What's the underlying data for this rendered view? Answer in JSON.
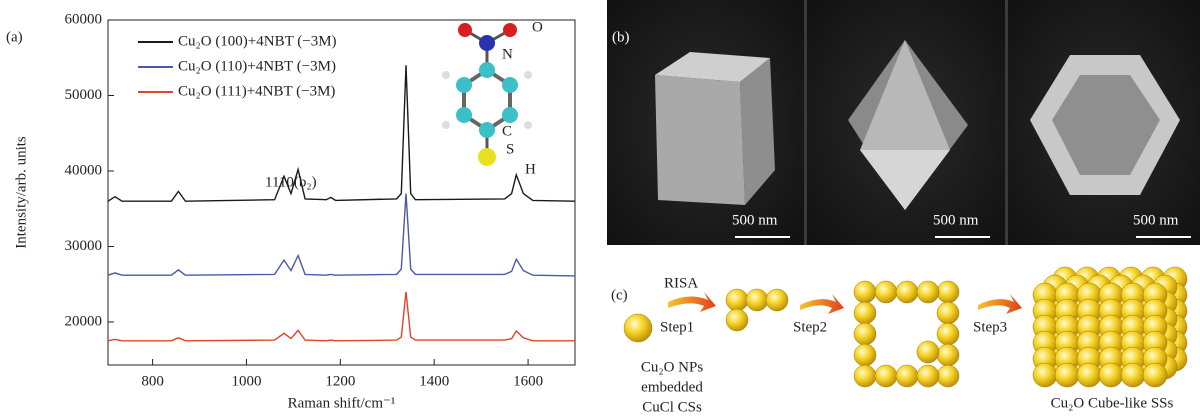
{
  "chart_data": {
    "type": "line",
    "panel": "(a)",
    "xlabel": "Raman shift/cm⁻¹",
    "ylabel": "Intensity/arb. units",
    "xlim": [
      705,
      1700
    ],
    "ylim": [
      14300,
      60000
    ],
    "xticks": [
      800,
      1000,
      1200,
      1400,
      1600
    ],
    "yticks": [
      20000,
      30000,
      40000,
      50000,
      60000
    ],
    "x": [
      705,
      720,
      735,
      840,
      855,
      870,
      1060,
      1080,
      1095,
      1110,
      1125,
      1170,
      1180,
      1190,
      1320,
      1330,
      1340,
      1350,
      1360,
      1550,
      1565,
      1575,
      1590,
      1610,
      1700
    ],
    "series": [
      {
        "name": "Cu₂O (100)+4NBT (−3M)",
        "color": "#1a1a1a",
        "values": [
          36000,
          36600,
          36000,
          36000,
          37300,
          36000,
          36200,
          39300,
          37000,
          40200,
          36300,
          36200,
          36500,
          36100,
          36300,
          37000,
          54000,
          37000,
          36200,
          36300,
          37000,
          39500,
          37000,
          36100,
          36000
        ]
      },
      {
        "name": "Cu₂O (110)+4NBT (−3M)",
        "color": "#4a5aa8",
        "values": [
          26200,
          26500,
          26200,
          26200,
          26900,
          26200,
          26300,
          28200,
          26800,
          28800,
          26300,
          26200,
          26300,
          26200,
          26300,
          27000,
          37000,
          27000,
          26300,
          26300,
          26700,
          28300,
          26800,
          26200,
          26100
        ]
      },
      {
        "name": "Cu₂O (111)+4NBT (−3M)",
        "color": "#e0452a",
        "values": [
          17500,
          17700,
          17500,
          17500,
          17900,
          17500,
          17600,
          18500,
          17800,
          18900,
          17600,
          17500,
          17600,
          17500,
          17600,
          18000,
          24000,
          18000,
          17600,
          17600,
          17800,
          18800,
          17900,
          17500,
          17500
        ]
      }
    ],
    "annotation": "1110(b₂)",
    "molecule_labels": [
      "O",
      "N",
      "C",
      "S",
      "H"
    ],
    "legend": "upper left"
  },
  "panel_b": {
    "label": "(b)",
    "scale_bars": [
      "500 nm",
      "500 nm",
      "500 nm"
    ]
  },
  "panel_c": {
    "label": "(c)",
    "step_labels": [
      "RISA",
      "Step1",
      "Step2",
      "Step3"
    ],
    "caption_left": [
      "Cu₂O NPs",
      "embedded",
      "CuCl CSs"
    ],
    "caption_right": "Cu₂O Cube-like SSs"
  }
}
